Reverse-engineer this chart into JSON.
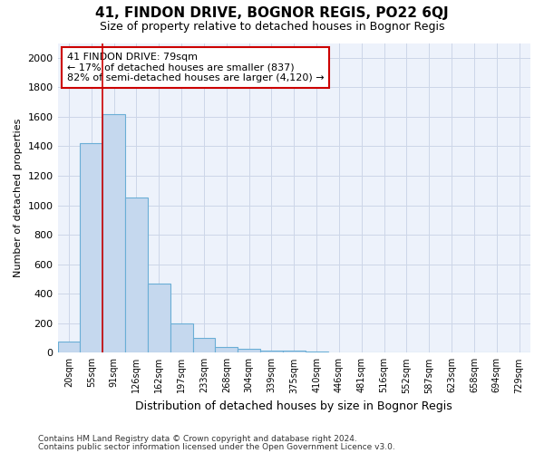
{
  "title": "41, FINDON DRIVE, BOGNOR REGIS, PO22 6QJ",
  "subtitle": "Size of property relative to detached houses in Bognor Regis",
  "xlabel": "Distribution of detached houses by size in Bognor Regis",
  "ylabel": "Number of detached properties",
  "footnote1": "Contains HM Land Registry data © Crown copyright and database right 2024.",
  "footnote2": "Contains public sector information licensed under the Open Government Licence v3.0.",
  "bar_labels": [
    "20sqm",
    "55sqm",
    "91sqm",
    "126sqm",
    "162sqm",
    "197sqm",
    "233sqm",
    "268sqm",
    "304sqm",
    "339sqm",
    "375sqm",
    "410sqm",
    "446sqm",
    "481sqm",
    "516sqm",
    "552sqm",
    "587sqm",
    "623sqm",
    "658sqm",
    "694sqm",
    "729sqm"
  ],
  "bar_values": [
    75,
    1420,
    1620,
    1050,
    470,
    200,
    100,
    40,
    25,
    17,
    12,
    5,
    3,
    2,
    1,
    0,
    0,
    0,
    0,
    0,
    0
  ],
  "bar_color": "#c5d8ee",
  "bar_edge_color": "#6aaed6",
  "ylim": [
    0,
    2100
  ],
  "yticks": [
    0,
    200,
    400,
    600,
    800,
    1000,
    1200,
    1400,
    1600,
    1800,
    2000
  ],
  "annotation_text": "41 FINDON DRIVE: 79sqm\n← 17% of detached houses are smaller (837)\n82% of semi-detached houses are larger (4,120) →",
  "annotation_box_color": "#ffffff",
  "annotation_box_edge": "#cc0000",
  "grid_color": "#ccd6e8",
  "background_color": "#edf2fb",
  "vline_color": "#cc0000",
  "vline_x_bar": 1
}
